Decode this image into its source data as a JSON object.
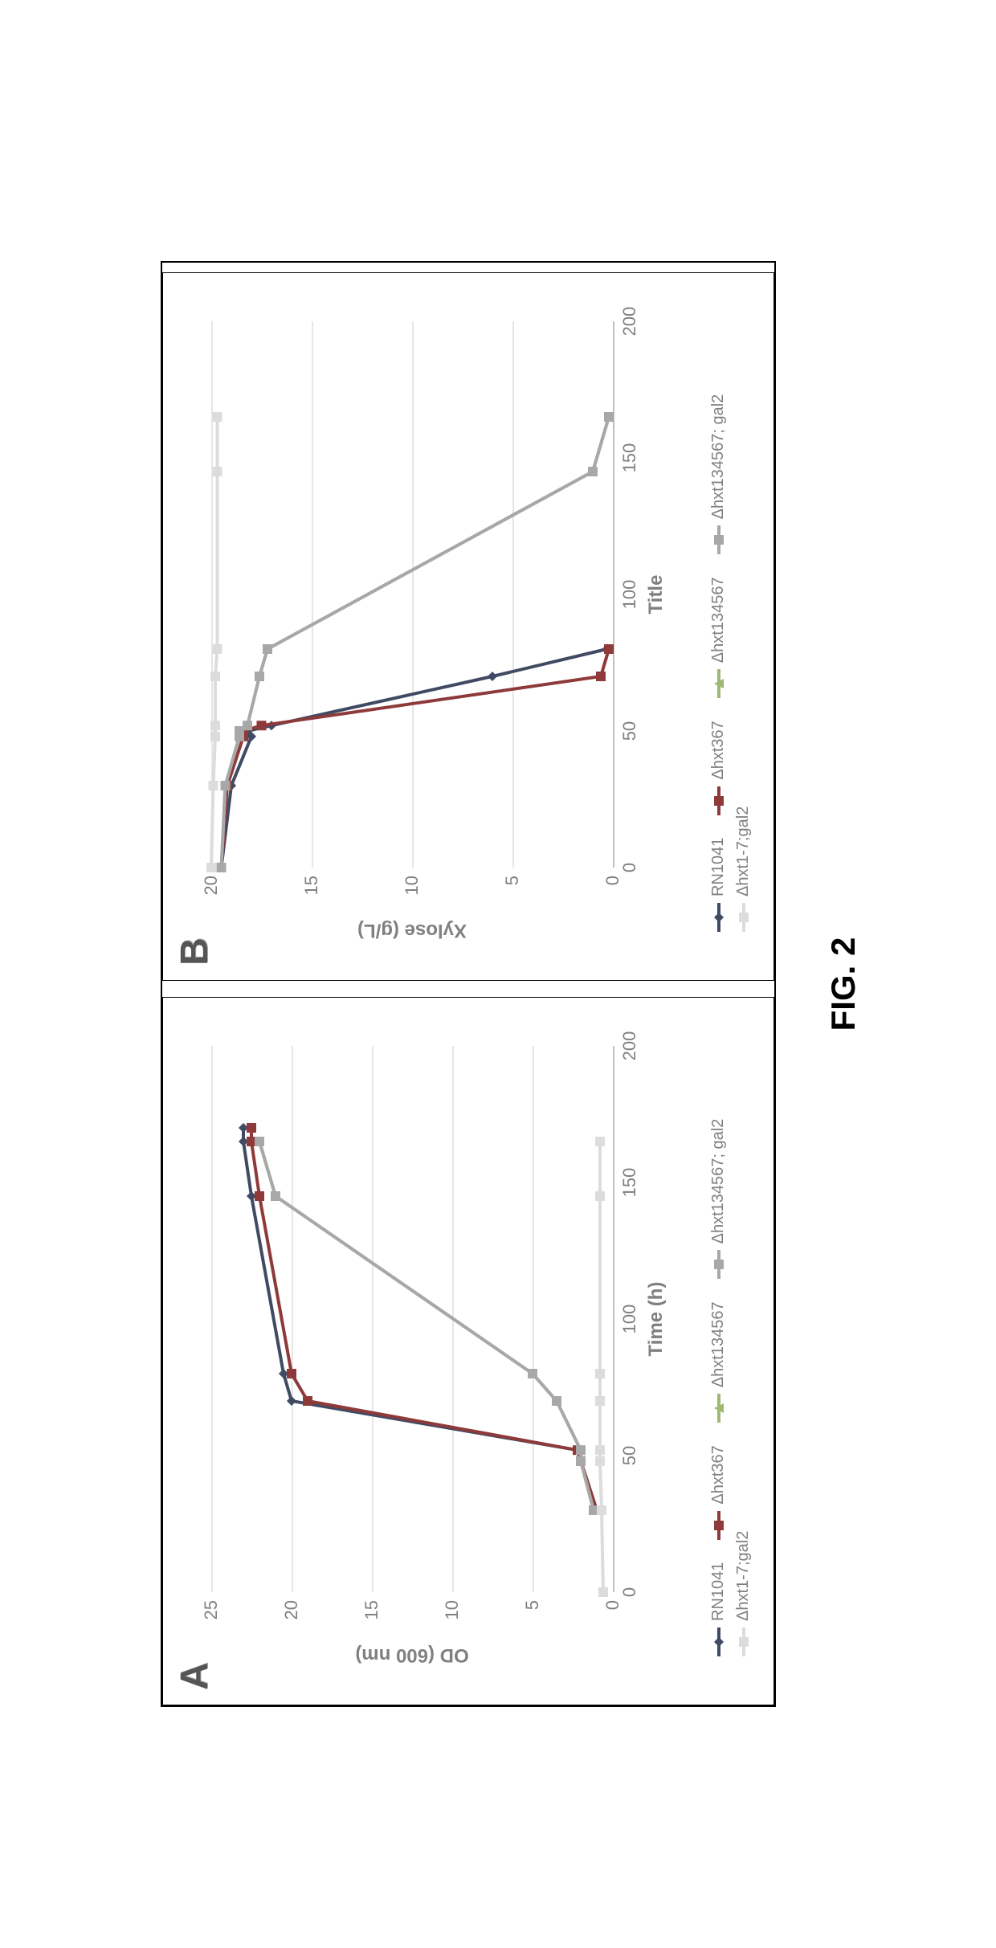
{
  "caption": "FIG. 2",
  "series_meta": [
    {
      "key": "RN1041",
      "label": "RN1041",
      "color": "#404a63",
      "marker": "diamond",
      "marker_size": 12,
      "line_width": 4
    },
    {
      "key": "dhxt367",
      "label": "Δhxt367",
      "color": "#8f3a3a",
      "marker": "square",
      "marker_size": 12,
      "line_width": 4
    },
    {
      "key": "dhxt134567",
      "label": "Δhxt134567",
      "color": "#9fb873",
      "marker": "triangle",
      "marker_size": 12,
      "line_width": 4
    },
    {
      "key": "dhxt134567_gal2",
      "label": "Δhxt134567; gal2",
      "color": "#a8a8a8",
      "marker": "square",
      "marker_size": 12,
      "line_width": 4
    },
    {
      "key": "dhxt1_7_gal2",
      "label": "Δhxt1-7;gal2",
      "color": "#dcdcdc",
      "marker": "square",
      "marker_size": 12,
      "line_width": 4
    }
  ],
  "panelA": {
    "letter": "A",
    "type": "line",
    "xlabel": "Time (h)",
    "ylabel": "OD (600 nm)",
    "xlim": [
      0,
      200
    ],
    "ylim": [
      0,
      25
    ],
    "xtick_step": 50,
    "ytick_step": 5,
    "background_color": "#ffffff",
    "grid_color": "#e6e6e6",
    "axis_color": "#bfbfbf",
    "label_fontsize": 24,
    "tick_fontsize": 22,
    "series": {
      "RN1041": {
        "x": [
          30,
          48,
          52,
          70,
          80,
          145,
          165,
          170
        ],
        "y": [
          1.0,
          2.0,
          2.2,
          20.0,
          20.5,
          22.5,
          23.0,
          23.0
        ]
      },
      "dhxt367": {
        "x": [
          30,
          48,
          52,
          70,
          80,
          145,
          165,
          170
        ],
        "y": [
          1.0,
          2.0,
          2.2,
          19.0,
          20.0,
          22.0,
          22.5,
          22.5
        ]
      },
      "dhxt134567": {
        "x": [
          30,
          48,
          52,
          70,
          80,
          145,
          165
        ],
        "y": [
          1.2,
          2.0,
          2.0,
          3.5,
          5.0,
          21.0,
          22.0
        ]
      },
      "dhxt134567_gal2": {
        "x": [
          30,
          48,
          52,
          70,
          80,
          145,
          165
        ],
        "y": [
          1.2,
          2.0,
          2.0,
          3.5,
          5.0,
          21.0,
          22.0
        ]
      },
      "dhxt1_7_gal2": {
        "x": [
          0,
          30,
          48,
          52,
          70,
          80,
          145,
          165
        ],
        "y": [
          0.6,
          0.7,
          0.8,
          0.8,
          0.8,
          0.8,
          0.8,
          0.8
        ]
      }
    }
  },
  "panelB": {
    "letter": "B",
    "type": "line",
    "xlabel": "Title",
    "ylabel": "Xylose (g/L)",
    "xlim": [
      0,
      200
    ],
    "ylim": [
      0,
      20
    ],
    "xtick_step": 50,
    "ytick_step": 5,
    "background_color": "#ffffff",
    "grid_color": "#e6e6e6",
    "axis_color": "#bfbfbf",
    "label_fontsize": 24,
    "tick_fontsize": 22,
    "series": {
      "RN1041": {
        "x": [
          0,
          30,
          48,
          50,
          52,
          70,
          80
        ],
        "y": [
          19.5,
          19.0,
          18.0,
          18.2,
          17.0,
          6.0,
          0.3
        ]
      },
      "dhxt367": {
        "x": [
          0,
          30,
          48,
          50,
          52,
          70,
          80
        ],
        "y": [
          19.5,
          19.2,
          18.4,
          18.4,
          17.5,
          0.6,
          0.2
        ]
      },
      "dhxt134567": {
        "x": [
          0,
          30,
          48,
          50,
          52,
          70,
          80,
          145,
          165
        ],
        "y": [
          19.5,
          19.3,
          18.6,
          18.6,
          18.2,
          17.6,
          17.2,
          1.0,
          0.2
        ]
      },
      "dhxt134567_gal2": {
        "x": [
          0,
          30,
          48,
          50,
          52,
          70,
          80,
          145,
          165
        ],
        "y": [
          19.5,
          19.3,
          18.6,
          18.6,
          18.2,
          17.6,
          17.2,
          1.0,
          0.2
        ]
      },
      "dhxt1_7_gal2": {
        "x": [
          0,
          30,
          48,
          52,
          70,
          80,
          145,
          165
        ],
        "y": [
          20.0,
          19.9,
          19.8,
          19.8,
          19.8,
          19.7,
          19.7,
          19.7
        ]
      }
    }
  }
}
